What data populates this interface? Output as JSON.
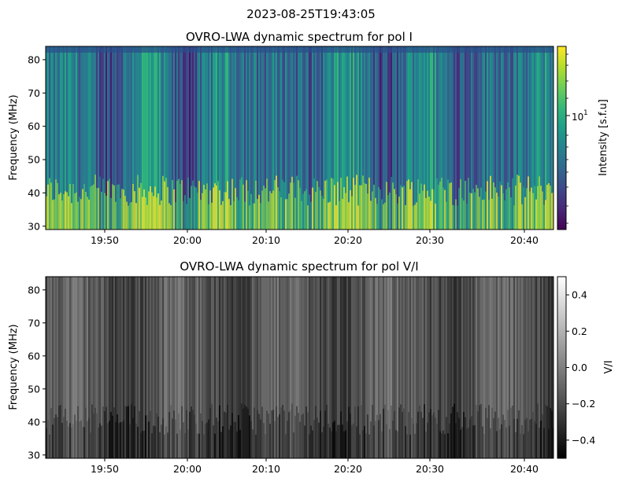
{
  "suptitle": "2023-08-25T19:43:05",
  "chart_data": [
    {
      "type": "heatmap",
      "title": "OVRO-LWA dynamic spectrum for pol I",
      "xlabel": "",
      "ylabel": "Frequency (MHz)",
      "xticks": [
        "19:50",
        "20:00",
        "20:10",
        "20:20",
        "20:30",
        "20:40"
      ],
      "yticks": [
        30,
        40,
        50,
        60,
        70,
        80
      ],
      "ylim": [
        29,
        84
      ],
      "colormap": "viridis",
      "colorbar": {
        "label": "Intensity [s.f.u]",
        "scale": "log",
        "major_ticks": [
          {
            "base": "10",
            "exp": "1"
          }
        ],
        "colors": [
          "#440154",
          "#482878",
          "#3e4989",
          "#31688e",
          "#26828e",
          "#1f9e89",
          "#35b779",
          "#6ece58",
          "#b5de2b",
          "#fde725"
        ]
      }
    },
    {
      "type": "heatmap",
      "title": "OVRO-LWA dynamic spectrum for pol V/I",
      "xlabel": "",
      "ylabel": "Frequency (MHz)",
      "xticks": [
        "19:50",
        "20:00",
        "20:10",
        "20:20",
        "20:30",
        "20:40"
      ],
      "yticks": [
        30,
        40,
        50,
        60,
        70,
        80
      ],
      "ylim": [
        29,
        84
      ],
      "colormap": "gray",
      "colorbar": {
        "label": "V/I",
        "scale": "linear",
        "range": [
          -0.5,
          0.5
        ],
        "ticks": [
          "0.4",
          "0.2",
          "0.0",
          "−0.2",
          "−0.4"
        ],
        "colors": [
          "#000000",
          "#ffffff"
        ]
      }
    }
  ]
}
